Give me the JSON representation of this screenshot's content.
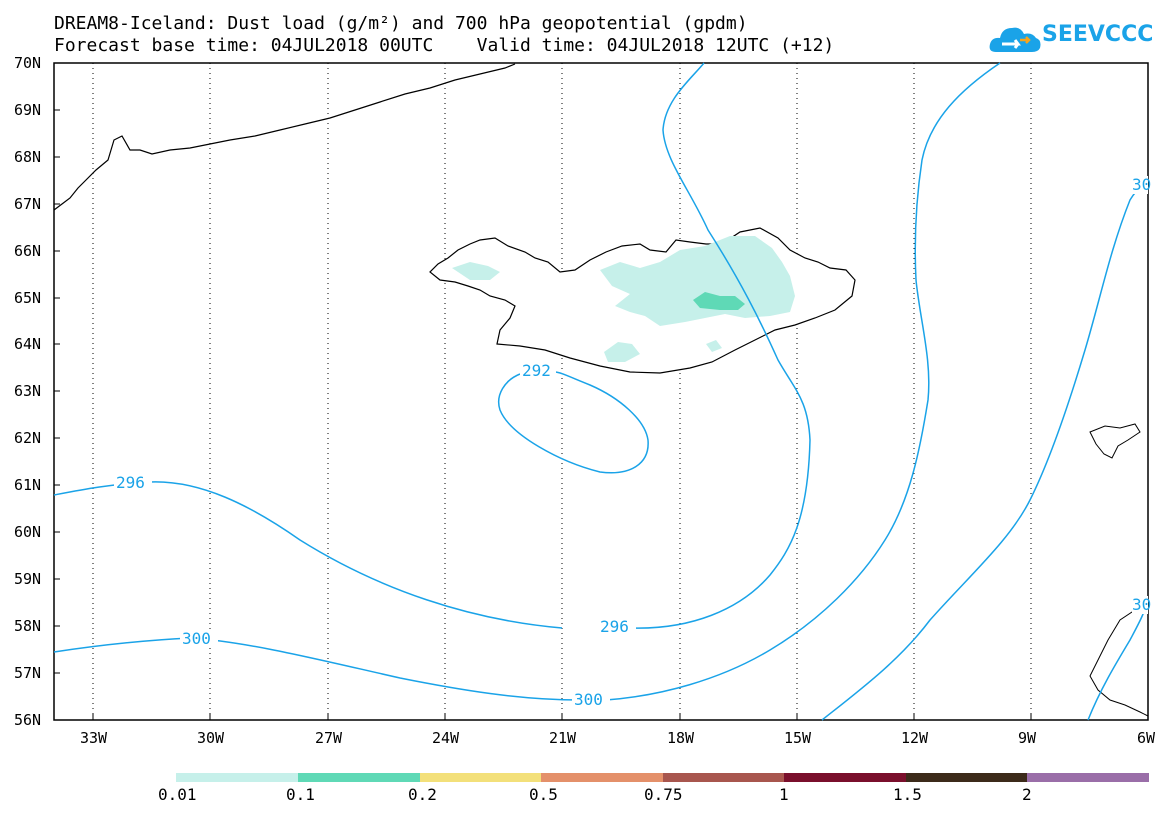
{
  "header": {
    "title_line1": "DREAM8-Iceland: Dust load (g/m²) and 700 hPa geopotential (gpdm)",
    "title_line2": "Forecast base time: 04JUL2018 00UTC    Valid time: 04JUL2018 12UTC (+12)",
    "logo_text": "SEEVCCC"
  },
  "axes": {
    "lat_labels": [
      "70N",
      "69N",
      "68N",
      "67N",
      "66N",
      "65N",
      "64N",
      "63N",
      "62N",
      "61N",
      "60N",
      "59N",
      "58N",
      "57N",
      "56N"
    ],
    "lon_labels": [
      "33W",
      "30W",
      "27W",
      "24W",
      "21W",
      "18W",
      "15W",
      "12W",
      "9W",
      "6W"
    ]
  },
  "contours": {
    "labels": [
      "292",
      "296",
      "296",
      "300",
      "300",
      "30",
      "30"
    ],
    "color": "#1aa3e8"
  },
  "colorbar": {
    "tick_labels": [
      "0.01",
      "0.1",
      "0.2",
      "0.5",
      "0.75",
      "1",
      "1.5",
      "2"
    ],
    "colors": [
      "#c6f0ea",
      "#5fd9b6",
      "#f3e07a",
      "#e4906a",
      "#a8564e",
      "#7a0f2c",
      "#3c2a1a",
      "#9a6ea8"
    ]
  }
}
